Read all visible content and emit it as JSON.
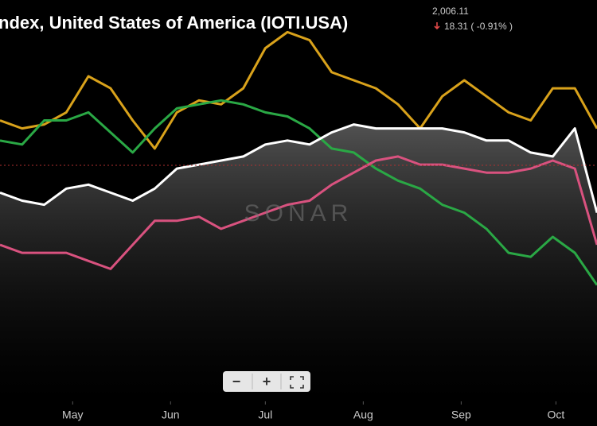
{
  "header": {
    "title": "ndex, United States of America (IOTI.USA)",
    "price": "2,006.11",
    "change": "18.31 ( -0.91% )"
  },
  "watermark": "SONAR",
  "controls": {
    "zoom_out": "−",
    "zoom_in": "+"
  },
  "chart_data": {
    "type": "line",
    "x": [
      0,
      7,
      14,
      21,
      28,
      35,
      42,
      49,
      56,
      63,
      70,
      77,
      84,
      91,
      98,
      105,
      112,
      119,
      126,
      133,
      140,
      147,
      154,
      161,
      168,
      175,
      182,
      189
    ],
    "xlim": [
      0,
      189
    ],
    "xticks": [
      {
        "value": 23,
        "label": "May"
      },
      {
        "value": 54,
        "label": "Jun"
      },
      {
        "value": 84,
        "label": "Jul"
      },
      {
        "value": 115,
        "label": "Aug"
      },
      {
        "value": 146,
        "label": "Sep"
      },
      {
        "value": 176,
        "label": "Oct"
      }
    ],
    "ylim": [
      0,
      100
    ],
    "area_under": 2,
    "series": [
      {
        "color": "#d9a21b",
        "values": [
          70,
          68,
          69,
          72,
          81,
          78,
          70,
          63,
          72,
          75,
          74,
          78,
          88,
          92,
          90,
          82,
          80,
          78,
          74,
          68,
          76,
          80,
          76,
          72,
          70,
          78,
          78,
          68
        ]
      },
      {
        "color": "#2aa845",
        "values": [
          65,
          64,
          70,
          70,
          72,
          67,
          62,
          68,
          73,
          74,
          75,
          74,
          72,
          71,
          68,
          63,
          62,
          58,
          55,
          53,
          49,
          47,
          43,
          37,
          36,
          41,
          37,
          29
        ]
      },
      {
        "color": "#ffffff",
        "values": [
          52,
          50,
          49,
          53,
          54,
          52,
          50,
          53,
          58,
          59,
          60,
          61,
          64,
          65,
          64,
          67,
          69,
          68,
          68,
          68,
          68,
          67,
          65,
          65,
          62,
          61,
          68,
          47
        ]
      },
      {
        "color": "#d9527f",
        "values": [
          39,
          37,
          37,
          37,
          35,
          33,
          39,
          45,
          45,
          46,
          43,
          45,
          47,
          49,
          50,
          54,
          57,
          60,
          61,
          59,
          59,
          58,
          57,
          57,
          58,
          60,
          58,
          39
        ]
      }
    ]
  }
}
